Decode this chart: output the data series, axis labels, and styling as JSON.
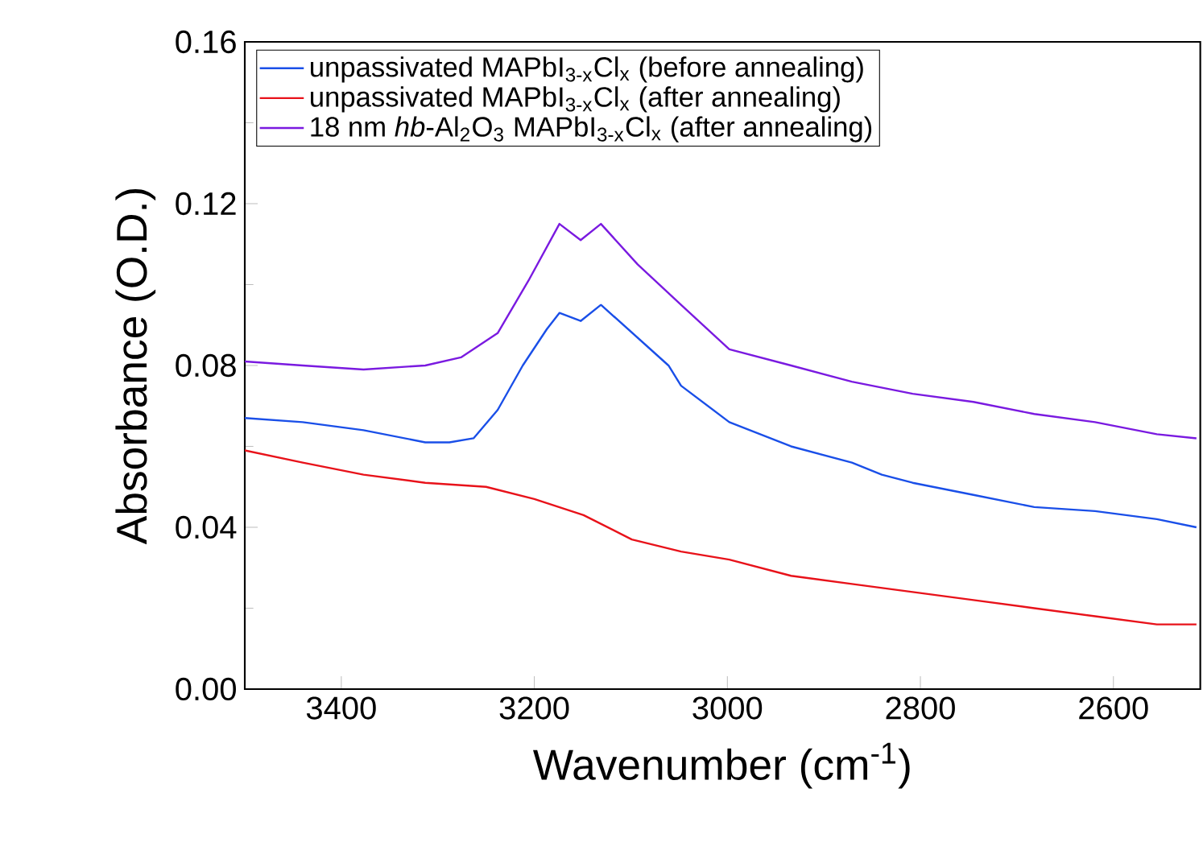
{
  "chart_data": {
    "type": "line",
    "xlabel": "Wavenumber (cm$^{-1}$)",
    "ylabel": "Absorbance (O.D.)",
    "xlim": [
      3500,
      2510
    ],
    "xticks": [
      3400,
      3200,
      3000,
      2800,
      2600
    ],
    "ylim": [
      0,
      0.16
    ],
    "yticks": [
      {
        "value": 0,
        "label": "0.00"
      },
      {
        "value": 0.04,
        "label": "0.04"
      },
      {
        "value": 0.08,
        "label": "0.08"
      },
      {
        "value": 0.12,
        "label": "0.12"
      },
      {
        "value": 0.16,
        "label": "0.16"
      }
    ],
    "legend": "top left",
    "series": [
      {
        "name": "unpassivated MAPbI$_{3-x}$Cl$_{x}$ (before annealing)",
        "color": "#1a4fe8",
        "x": [
          3500,
          3440,
          3377,
          3313,
          3288,
          3263,
          3238,
          3212,
          3187,
          3174,
          3152,
          3131,
          3061,
          3048,
          2998,
          2934,
          2871,
          2840,
          2808,
          2745,
          2682,
          2619,
          2555,
          2514
        ],
        "values": [
          0.067,
          0.066,
          0.064,
          0.061,
          0.061,
          0.062,
          0.069,
          0.08,
          0.089,
          0.093,
          0.091,
          0.095,
          0.08,
          0.075,
          0.066,
          0.06,
          0.056,
          0.053,
          0.051,
          0.048,
          0.045,
          0.044,
          0.042,
          0.04
        ]
      },
      {
        "name": "unpassivated MAPbI$_{3-x}$Cl$_{x}$ (after annealing)",
        "color": "#e8121a",
        "x": [
          3500,
          3440,
          3377,
          3313,
          3250,
          3200,
          3149,
          3099,
          3048,
          2998,
          2934,
          2871,
          2808,
          2745,
          2682,
          2619,
          2555,
          2514
        ],
        "values": [
          0.059,
          0.056,
          0.053,
          0.051,
          0.05,
          0.047,
          0.043,
          0.037,
          0.034,
          0.032,
          0.028,
          0.026,
          0.024,
          0.022,
          0.02,
          0.018,
          0.016,
          0.016
        ]
      },
      {
        "name": "18 nm *hb*-Al$_{2}$O$_{3}$ MAPbI$_{3-x}$Cl$_{x}$ (after annealing)",
        "color": "#7a1ae0",
        "x": [
          3500,
          3440,
          3377,
          3313,
          3276,
          3238,
          3206,
          3174,
          3152,
          3131,
          3093,
          3048,
          2998,
          2934,
          2871,
          2808,
          2745,
          2682,
          2619,
          2555,
          2514
        ],
        "values": [
          0.081,
          0.08,
          0.079,
          0.08,
          0.082,
          0.088,
          0.101,
          0.115,
          0.111,
          0.115,
          0.105,
          0.095,
          0.084,
          0.08,
          0.076,
          0.073,
          0.071,
          0.068,
          0.066,
          0.063,
          0.062
        ]
      }
    ]
  }
}
